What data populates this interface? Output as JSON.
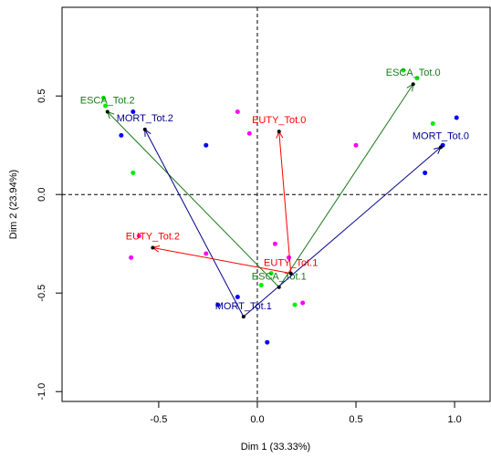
{
  "chart_data": {
    "type": "scatter",
    "xlabel": "Dim 1 (33.33%)",
    "ylabel": "Dim 2 (23.94%)",
    "xlim": [
      -0.99,
      1.18
    ],
    "ylim": [
      -1.05,
      0.95
    ],
    "xticks": [
      -0.5,
      {
        "value": 0,
        "label": "0.0"
      },
      0.5,
      {
        "value": 1,
        "label": "1.0"
      }
    ],
    "yticks": [
      {
        "value": -1,
        "label": "-1.0"
      },
      -0.5,
      {
        "value": 0,
        "label": "0.0"
      },
      0.5
    ],
    "series": [
      {
        "color": "#00ee00",
        "x": [
          0.74,
          0.81,
          -0.78,
          -0.77,
          -0.63,
          0.89,
          0.07,
          0.02,
          0.19
        ],
        "values": [
          0.63,
          0.59,
          0.49,
          0.45,
          0.11,
          0.36,
          -0.4,
          -0.46,
          -0.56
        ]
      },
      {
        "color": "#0000ff",
        "x": [
          1.01,
          0.94,
          0.85,
          -0.63,
          -0.69,
          -0.26,
          -0.1,
          -0.2,
          0.05
        ],
        "values": [
          0.39,
          0.25,
          0.11,
          0.42,
          0.3,
          0.25,
          -0.52,
          -0.56,
          -0.75
        ]
      },
      {
        "color": "#ff00ff",
        "x": [
          -0.1,
          -0.04,
          0.5,
          -0.6,
          -0.64,
          -0.26,
          0.09,
          0.16,
          0.23
        ],
        "values": [
          0.42,
          0.31,
          0.25,
          -0.21,
          -0.32,
          -0.3,
          -0.25,
          -0.32,
          -0.55
        ]
      }
    ],
    "vectors": [
      {
        "color": "#1a7a1a",
        "from": {
          "label": "ESCA_Tot.1",
          "x": 0.11,
          "y": -0.47
        },
        "to": [
          {
            "label": "ESCA_Tot.0",
            "x": 0.79,
            "y": 0.56
          },
          {
            "label": "ESCA_Tot.2",
            "x": -0.76,
            "y": 0.42
          }
        ]
      },
      {
        "color": "#00008b",
        "from": {
          "label": "MORT_Tot.1",
          "x": -0.07,
          "y": -0.62
        },
        "to": [
          {
            "label": "MORT_Tot.0",
            "x": 0.93,
            "y": 0.24
          },
          {
            "label": "MORT_Tot.2",
            "x": -0.57,
            "y": 0.33
          }
        ]
      },
      {
        "color": "#ff0000",
        "from": {
          "label": "EUTY_Tot.1",
          "x": 0.17,
          "y": -0.4
        },
        "to": [
          {
            "label": "EUTY_Tot.0",
            "x": 0.11,
            "y": 0.32
          },
          {
            "label": "EUTY_Tot.2",
            "x": -0.53,
            "y": -0.27
          }
        ]
      }
    ]
  }
}
